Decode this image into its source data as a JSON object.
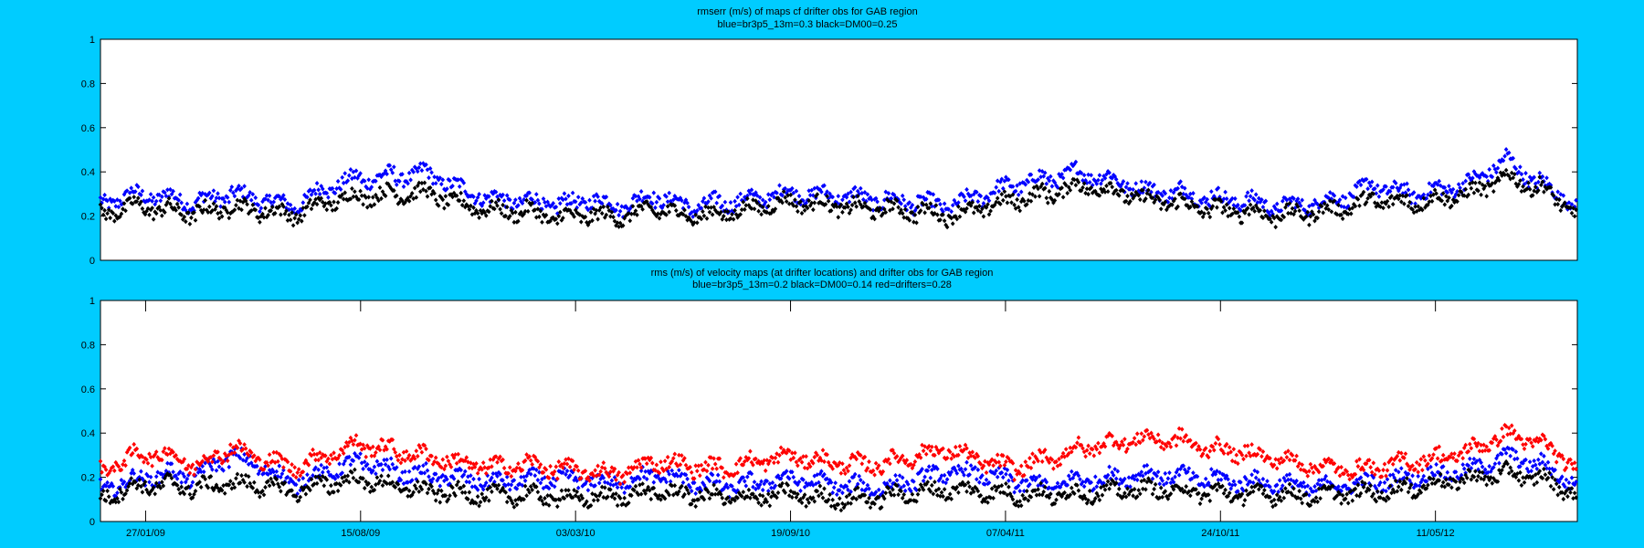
{
  "figure": {
    "background": "#00ccff"
  },
  "chart_data": [
    {
      "type": "scatter",
      "title": "rmserr (m/s) of maps cf drifter obs for GAB region",
      "subtitle": "blue=br3p5_13m=0.3 black=DM00=0.25",
      "ylim": [
        0,
        1
      ],
      "yticks": [
        0,
        0.2,
        0.4,
        0.6,
        0.8,
        1
      ],
      "ytick_labels": [
        "0",
        "0.2",
        "0.4",
        "0.6",
        "0.8",
        "1"
      ],
      "xlim": [
        "2008-12-16",
        "2012-09-20"
      ],
      "xtick_labels": [],
      "grid": false,
      "series": [
        {
          "color": "#0000ff",
          "t": [
            "2008-12-16",
            "2009-01-15",
            "2009-02-15",
            "2009-03-15",
            "2009-04-15",
            "2009-05-15",
            "2009-06-15",
            "2009-07-15",
            "2009-08-15",
            "2009-09-15",
            "2009-10-15",
            "2009-11-15",
            "2009-12-15",
            "2010-01-15",
            "2010-02-15",
            "2010-03-15",
            "2010-04-15",
            "2010-05-15",
            "2010-06-15",
            "2010-07-15",
            "2010-08-15",
            "2010-09-15",
            "2010-10-15",
            "2010-11-15",
            "2010-12-15",
            "2011-01-15",
            "2011-02-15",
            "2011-03-15",
            "2011-04-15",
            "2011-05-15",
            "2011-06-15",
            "2011-07-15",
            "2011-08-15",
            "2011-09-15",
            "2011-10-15",
            "2011-11-15",
            "2011-12-15",
            "2012-01-15",
            "2012-02-15",
            "2012-03-15",
            "2012-04-15",
            "2012-05-15",
            "2012-06-15",
            "2012-07-15",
            "2012-08-15",
            "2012-09-20"
          ],
          "y": [
            0.26,
            0.3,
            0.29,
            0.26,
            0.3,
            0.27,
            0.24,
            0.33,
            0.37,
            0.38,
            0.4,
            0.33,
            0.28,
            0.27,
            0.25,
            0.27,
            0.24,
            0.29,
            0.24,
            0.26,
            0.28,
            0.31,
            0.3,
            0.29,
            0.27,
            0.26,
            0.24,
            0.29,
            0.34,
            0.37,
            0.4,
            0.37,
            0.32,
            0.31,
            0.28,
            0.27,
            0.24,
            0.25,
            0.28,
            0.34,
            0.3,
            0.32,
            0.36,
            0.46,
            0.35,
            0.26
          ]
        },
        {
          "color": "#000000",
          "t": [
            "2008-12-16",
            "2009-01-15",
            "2009-02-15",
            "2009-03-15",
            "2009-04-15",
            "2009-05-15",
            "2009-06-15",
            "2009-07-15",
            "2009-08-15",
            "2009-09-15",
            "2009-10-15",
            "2009-11-15",
            "2009-12-15",
            "2010-01-15",
            "2010-02-15",
            "2010-03-15",
            "2010-04-15",
            "2010-05-15",
            "2010-06-15",
            "2010-07-15",
            "2010-08-15",
            "2010-09-15",
            "2010-10-15",
            "2010-11-15",
            "2010-12-15",
            "2011-01-15",
            "2011-02-15",
            "2011-03-15",
            "2011-04-15",
            "2011-05-15",
            "2011-06-15",
            "2011-07-15",
            "2011-08-15",
            "2011-09-15",
            "2011-10-15",
            "2011-11-15",
            "2011-12-15",
            "2012-01-15",
            "2012-02-15",
            "2012-03-15",
            "2012-04-15",
            "2012-05-15",
            "2012-06-15",
            "2012-07-15",
            "2012-08-15",
            "2012-09-20"
          ],
          "y": [
            0.21,
            0.25,
            0.23,
            0.21,
            0.24,
            0.22,
            0.2,
            0.26,
            0.29,
            0.3,
            0.31,
            0.26,
            0.23,
            0.22,
            0.19,
            0.2,
            0.19,
            0.23,
            0.2,
            0.21,
            0.24,
            0.27,
            0.26,
            0.24,
            0.23,
            0.22,
            0.2,
            0.23,
            0.27,
            0.3,
            0.34,
            0.32,
            0.28,
            0.26,
            0.23,
            0.22,
            0.2,
            0.21,
            0.23,
            0.27,
            0.26,
            0.28,
            0.31,
            0.38,
            0.33,
            0.22
          ]
        }
      ]
    },
    {
      "type": "scatter",
      "title": "rms (m/s) of velocity maps (at drifter locations) and drifter obs for GAB region",
      "subtitle": "blue=br3p5_13m=0.2  black=DM00=0.14 red=drifters=0.28",
      "ylim": [
        0,
        1
      ],
      "yticks": [
        0,
        0.2,
        0.4,
        0.6,
        0.8,
        1
      ],
      "ytick_labels": [
        "0",
        "0.2",
        "0.4",
        "0.6",
        "0.8",
        "1"
      ],
      "xlim": [
        "2008-12-16",
        "2012-09-20"
      ],
      "xticks": [
        "2009-01-27",
        "2009-08-15",
        "2010-03-03",
        "2010-09-19",
        "2011-04-07",
        "2011-10-24",
        "2012-05-11"
      ],
      "xtick_labels": [
        "27/01/09",
        "15/08/09",
        "03/03/10",
        "19/09/10",
        "07/04/11",
        "24/10/11",
        "11/05/12"
      ],
      "grid": false,
      "series": [
        {
          "color": "#0000ff",
          "t": [
            "2008-12-16",
            "2009-01-15",
            "2009-02-15",
            "2009-03-15",
            "2009-04-15",
            "2009-05-15",
            "2009-06-15",
            "2009-07-15",
            "2009-08-15",
            "2009-09-15",
            "2009-10-15",
            "2009-11-15",
            "2009-12-15",
            "2010-01-15",
            "2010-02-15",
            "2010-03-15",
            "2010-04-15",
            "2010-05-15",
            "2010-06-15",
            "2010-07-15",
            "2010-08-15",
            "2010-09-15",
            "2010-10-15",
            "2010-11-15",
            "2010-12-15",
            "2011-01-15",
            "2011-02-15",
            "2011-03-15",
            "2011-04-15",
            "2011-05-15",
            "2011-06-15",
            "2011-07-15",
            "2011-08-15",
            "2011-09-15",
            "2011-10-15",
            "2011-11-15",
            "2011-12-15",
            "2012-01-15",
            "2012-02-15",
            "2012-03-15",
            "2012-04-15",
            "2012-05-15",
            "2012-06-15",
            "2012-07-15",
            "2012-08-15",
            "2012-09-20"
          ],
          "y": [
            0.15,
            0.19,
            0.22,
            0.2,
            0.3,
            0.24,
            0.17,
            0.22,
            0.27,
            0.23,
            0.21,
            0.2,
            0.18,
            0.19,
            0.19,
            0.18,
            0.17,
            0.21,
            0.18,
            0.16,
            0.17,
            0.2,
            0.18,
            0.16,
            0.15,
            0.19,
            0.22,
            0.21,
            0.18,
            0.16,
            0.19,
            0.2,
            0.22,
            0.21,
            0.19,
            0.18,
            0.17,
            0.15,
            0.16,
            0.17,
            0.2,
            0.22,
            0.24,
            0.3,
            0.26,
            0.17
          ]
        },
        {
          "color": "#000000",
          "t": [
            "2008-12-16",
            "2009-01-15",
            "2009-02-15",
            "2009-03-15",
            "2009-04-15",
            "2009-05-15",
            "2009-06-15",
            "2009-07-15",
            "2009-08-15",
            "2009-09-15",
            "2009-10-15",
            "2009-11-15",
            "2009-12-15",
            "2010-01-15",
            "2010-02-15",
            "2010-03-15",
            "2010-04-15",
            "2010-05-15",
            "2010-06-15",
            "2010-07-15",
            "2010-08-15",
            "2010-09-15",
            "2010-10-15",
            "2010-11-15",
            "2010-12-15",
            "2011-01-15",
            "2011-02-15",
            "2011-03-15",
            "2011-04-15",
            "2011-05-15",
            "2011-06-15",
            "2011-07-15",
            "2011-08-15",
            "2011-09-15",
            "2011-10-15",
            "2011-11-15",
            "2011-12-15",
            "2012-01-15",
            "2012-02-15",
            "2012-03-15",
            "2012-04-15",
            "2012-05-15",
            "2012-06-15",
            "2012-07-15",
            "2012-08-15",
            "2012-09-20"
          ],
          "y": [
            0.11,
            0.16,
            0.17,
            0.15,
            0.17,
            0.16,
            0.13,
            0.17,
            0.19,
            0.16,
            0.14,
            0.13,
            0.12,
            0.12,
            0.11,
            0.1,
            0.11,
            0.13,
            0.12,
            0.11,
            0.11,
            0.13,
            0.11,
            0.1,
            0.11,
            0.13,
            0.14,
            0.13,
            0.12,
            0.12,
            0.13,
            0.14,
            0.15,
            0.14,
            0.13,
            0.12,
            0.12,
            0.11,
            0.12,
            0.13,
            0.15,
            0.18,
            0.2,
            0.22,
            0.2,
            0.13
          ]
        },
        {
          "color": "#ff0000",
          "t": [
            "2008-12-16",
            "2009-01-15",
            "2009-02-15",
            "2009-03-15",
            "2009-04-15",
            "2009-05-15",
            "2009-06-15",
            "2009-07-15",
            "2009-08-15",
            "2009-09-15",
            "2009-10-15",
            "2009-11-15",
            "2009-12-15",
            "2010-01-15",
            "2010-02-15",
            "2010-03-15",
            "2010-04-15",
            "2010-05-15",
            "2010-06-15",
            "2010-07-15",
            "2010-08-15",
            "2010-09-15",
            "2010-10-15",
            "2010-11-15",
            "2010-12-15",
            "2011-01-15",
            "2011-02-15",
            "2011-03-15",
            "2011-04-15",
            "2011-05-15",
            "2011-06-15",
            "2011-07-15",
            "2011-08-15",
            "2011-09-15",
            "2011-10-15",
            "2011-11-15",
            "2011-12-15",
            "2012-01-15",
            "2012-02-15",
            "2012-03-15",
            "2012-04-15",
            "2012-05-15",
            "2012-06-15",
            "2012-07-15",
            "2012-08-15",
            "2012-09-20"
          ],
          "y": [
            0.23,
            0.3,
            0.31,
            0.25,
            0.33,
            0.28,
            0.24,
            0.3,
            0.35,
            0.32,
            0.3,
            0.27,
            0.25,
            0.26,
            0.24,
            0.22,
            0.21,
            0.27,
            0.25,
            0.24,
            0.27,
            0.3,
            0.28,
            0.26,
            0.26,
            0.3,
            0.32,
            0.27,
            0.24,
            0.28,
            0.33,
            0.36,
            0.38,
            0.37,
            0.33,
            0.31,
            0.28,
            0.25,
            0.23,
            0.24,
            0.27,
            0.29,
            0.33,
            0.4,
            0.36,
            0.25
          ]
        }
      ]
    }
  ]
}
